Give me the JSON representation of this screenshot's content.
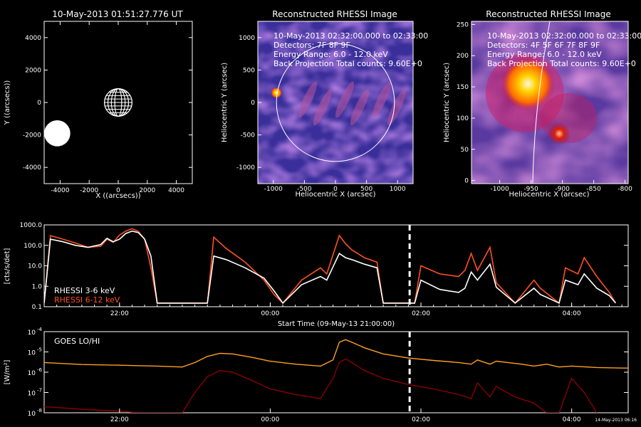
{
  "chart_data": [
    {
      "type": "scatter",
      "title": "10-May-2013 01:51:27.776 UT",
      "xlabel": "X ((arcsecs))",
      "ylabel": "Y ((arcsecs))",
      "xlim": [
        -5100,
        5100
      ],
      "ylim": [
        -5000,
        5000
      ],
      "xticks": [
        "-4000",
        "-2000",
        "0",
        "2000",
        "4000"
      ],
      "yticks": [
        "-4000",
        "-2000",
        "0",
        "2000",
        "4000"
      ],
      "objects": [
        {
          "name": "Sun",
          "x": 0,
          "y": 0,
          "radius": 950
        },
        {
          "name": "",
          "x": -4200,
          "y": -1900,
          "radius": 900
        }
      ]
    },
    {
      "type": "heatmap",
      "title": "Reconstructed RHESSI Image",
      "annotations": [
        "10-May-2013 02:32:00.000 to 02:33:00",
        "Detectors: 7F 8F 9F",
        "Energy Range: 6.0 - 12.0 keV",
        "Back Projection      Total counts: 9.60E+0"
      ],
      "xlabel": "Heliocentric X (arcsec)",
      "ylabel": "Heliocentric Y (arcsec)",
      "xlim": [
        -1250,
        1250
      ],
      "ylim": [
        -1250,
        1250
      ],
      "xticks": [
        "-1000",
        "-500",
        "0",
        "500",
        "1000"
      ],
      "yticks": [
        "-1000",
        "-500",
        "0",
        "500",
        "1000"
      ],
      "source": {
        "x": -950,
        "y": 150
      },
      "limb_radius": 950
    },
    {
      "type": "heatmap",
      "title": "Reconstructed RHESSI Image",
      "annotations": [
        "10-May-2013 02:32:00.000 to 02:33:00",
        "Detectors: 4F 5F 6F 7F 8F 9F",
        "Energy Range: 6.0 - 12.0 keV",
        "Back Projection      Total counts: 9.60E+0"
      ],
      "xlabel": "Heliocentric X (arcsec)",
      "ylabel": "Heliocentric Y (arcsec)",
      "xlim": [
        -1045,
        -795
      ],
      "ylim": [
        -5,
        255
      ],
      "xticks": [
        "-1000",
        "-950",
        "-900",
        "-850",
        "-800"
      ],
      "yticks": [
        "0",
        "50",
        "100",
        "150",
        "200",
        "250"
      ],
      "sources": [
        {
          "x": -955,
          "y": 155
        },
        {
          "x": -905,
          "y": 75
        }
      ]
    },
    {
      "type": "line",
      "xlabel": "Start Time (09-May-13 21:00:00)",
      "ylabel": "[cts/s/det]",
      "ylim": [
        0.1,
        1000
      ],
      "yscale": "log",
      "yticks": [
        "0.1",
        "1.0",
        "10.0",
        "100.0",
        "1000.0"
      ],
      "xticks": [
        "22:00",
        "00:00",
        "02:00",
        "04:00"
      ],
      "legend": [
        "RHESSI  3-6 keV",
        "RHESSI  6-12 keV"
      ],
      "legend_position": "bottom-left",
      "marker_time": "01:51",
      "series": [
        {
          "name": "RHESSI  3-6 keV",
          "color": "#ffffff",
          "x": [
            "21:00",
            "21:05",
            "21:15",
            "21:25",
            "21:35",
            "21:45",
            "21:50",
            "21:55",
            "22:00",
            "22:05",
            "22:10",
            "22:15",
            "22:20",
            "22:25",
            "22:30",
            "23:10",
            "23:15",
            "23:25",
            "23:40",
            "23:55",
            "00:03",
            "00:10",
            "00:25",
            "00:40",
            "00:45",
            "00:55",
            "01:00",
            "01:05",
            "01:15",
            "01:25",
            "01:30",
            "01:55",
            "02:00",
            "02:15",
            "02:30",
            "02:35",
            "02:40",
            "02:45",
            "02:55",
            "03:00",
            "03:15",
            "03:30",
            "03:35",
            "03:50",
            "03:55",
            "04:05",
            "04:10",
            "04:20",
            "04:30",
            "04:35"
          ],
          "y": [
            0.15,
            200,
            150,
            100,
            80,
            110,
            220,
            150,
            200,
            380,
            500,
            420,
            200,
            30,
            0.15,
            0.15,
            30,
            20,
            8,
            2.5,
            0.6,
            0.15,
            1.2,
            3,
            2,
            40,
            25,
            20,
            12,
            8,
            0.15,
            0.15,
            2,
            0.7,
            0.5,
            0.8,
            5,
            2,
            12,
            0.9,
            0.15,
            0.8,
            0.4,
            0.15,
            2,
            1.2,
            4,
            0.8,
            0.35,
            0.15
          ]
        },
        {
          "name": "RHESSI  6-12 keV",
          "color": "#ff5020",
          "x": [
            "21:00",
            "21:05",
            "21:15",
            "21:25",
            "21:35",
            "21:45",
            "21:50",
            "21:55",
            "22:00",
            "22:05",
            "22:10",
            "22:15",
            "22:20",
            "22:25",
            "22:30",
            "23:10",
            "23:15",
            "23:25",
            "23:40",
            "23:55",
            "00:03",
            "00:10",
            "00:25",
            "00:40",
            "00:45",
            "00:55",
            "01:00",
            "01:05",
            "01:15",
            "01:25",
            "01:30",
            "01:55",
            "02:00",
            "02:15",
            "02:30",
            "02:35",
            "02:40",
            "02:45",
            "02:55",
            "03:00",
            "03:15",
            "03:30",
            "03:35",
            "03:50",
            "03:55",
            "04:05",
            "04:10",
            "04:20",
            "04:30",
            "04:35"
          ],
          "y": [
            0.15,
            300,
            200,
            130,
            80,
            90,
            200,
            140,
            320,
            500,
            650,
            480,
            200,
            8,
            0.15,
            0.15,
            250,
            70,
            15,
            2,
            0.4,
            0.15,
            2,
            8,
            4,
            300,
            120,
            60,
            25,
            15,
            0.15,
            0.15,
            10,
            4,
            3,
            6,
            40,
            6,
            80,
            1.5,
            0.15,
            2,
            0.8,
            0.15,
            8,
            4,
            25,
            3,
            0.5,
            0.15
          ]
        }
      ]
    },
    {
      "type": "line",
      "title": "GOES LO/HI",
      "ylabel": "[W/m²]",
      "yscale": "log",
      "ylim": [
        1e-08,
        0.0001
      ],
      "yticks": [
        "10",
        "10",
        "10",
        "10",
        "10"
      ],
      "ytick_exponents": [
        "-8",
        "-7",
        "-6",
        "-5",
        "-4"
      ],
      "xticks": [
        "22:00",
        "00:00",
        "02:00",
        "04:00"
      ],
      "marker_time": "01:51",
      "timestamp": "14-May-2013 06:16",
      "series": [
        {
          "name": "LO",
          "color": "#ffa020",
          "x": [
            "21:00",
            "21:30",
            "22:00",
            "22:30",
            "22:50",
            "23:00",
            "23:10",
            "23:20",
            "23:30",
            "23:45",
            "00:00",
            "00:20",
            "00:40",
            "00:50",
            "00:55",
            "01:00",
            "01:05",
            "01:15",
            "01:30",
            "01:50",
            "02:10",
            "02:30",
            "02:40",
            "02:45",
            "02:55",
            "03:00",
            "03:20",
            "03:30",
            "03:40",
            "03:50",
            "04:00",
            "04:20",
            "04:40",
            "05:00"
          ],
          "y": [
            3e-06,
            2.4e-06,
            2.2e-06,
            2e-06,
            1.8e-06,
            3e-06,
            6e-06,
            8.5e-06,
            8e-06,
            5.5e-06,
            3.5e-06,
            2.5e-06,
            2e-06,
            4e-06,
            3e-05,
            4e-05,
            3e-05,
            1.6e-05,
            8e-06,
            5e-06,
            3.8e-06,
            3e-06,
            2.5e-06,
            4e-06,
            2.5e-06,
            3.5e-06,
            2.5e-06,
            2e-06,
            2.5e-06,
            1.8e-06,
            2e-06,
            1.7e-06,
            1.6e-06,
            1.6e-06
          ]
        },
        {
          "name": "HI",
          "color": "#8a0000",
          "x": [
            "21:00",
            "21:30",
            "22:00",
            "22:15",
            "22:30",
            "22:50",
            "23:00",
            "23:10",
            "23:20",
            "23:30",
            "23:45",
            "00:00",
            "00:20",
            "00:40",
            "00:50",
            "00:55",
            "01:00",
            "01:05",
            "01:15",
            "01:30",
            "01:50",
            "02:10",
            "02:30",
            "02:40",
            "02:45",
            "02:55",
            "03:00",
            "03:15",
            "03:30",
            "03:40",
            "03:50",
            "04:00",
            "04:10",
            "04:20"
          ],
          "y": [
            2e-08,
            1.5e-08,
            1.2e-08,
            1e-08,
            1e-08,
            1e-08,
            1e-07,
            6e-07,
            1.2e-06,
            1e-06,
            4e-07,
            1.5e-07,
            8e-08,
            5e-08,
            5e-07,
            3e-06,
            4.5e-06,
            3e-06,
            1.2e-06,
            5e-07,
            2.5e-07,
            1.5e-07,
            8e-08,
            5e-08,
            3e-07,
            6e-08,
            2e-07,
            6e-08,
            3e-08,
            1e-08,
            1e-08,
            5e-07,
            1e-07,
            1e-08
          ]
        }
      ]
    }
  ]
}
